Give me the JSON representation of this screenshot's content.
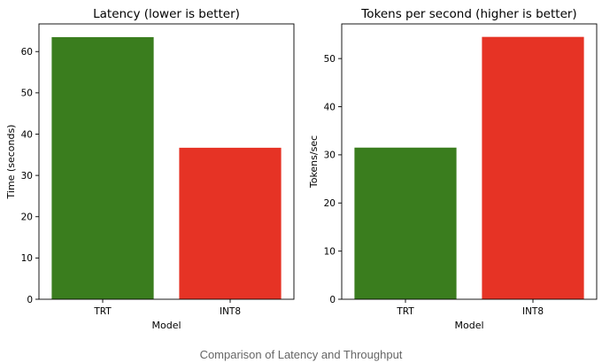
{
  "caption": "Comparison of Latency and Throughput",
  "colors": {
    "green": "#3a7d1e",
    "red": "#e63325"
  },
  "chart_data": [
    {
      "type": "bar",
      "title": "Latency (lower is better)",
      "xlabel": "Model",
      "ylabel": "Time (seconds)",
      "categories": [
        "TRT",
        "INT8"
      ],
      "values": [
        63.5,
        36.7
      ],
      "bar_colors": [
        "#3a7d1e",
        "#e63325"
      ],
      "ylim": [
        0,
        66.7
      ],
      "yticks": [
        0,
        10,
        20,
        30,
        40,
        50,
        60
      ],
      "grid": false
    },
    {
      "type": "bar",
      "title": "Tokens per second (higher is better)",
      "xlabel": "Model",
      "ylabel": "Tokens/sec",
      "categories": [
        "TRT",
        "INT8"
      ],
      "values": [
        31.5,
        54.5
      ],
      "bar_colors": [
        "#3a7d1e",
        "#e63325"
      ],
      "ylim": [
        0,
        57.2
      ],
      "yticks": [
        0,
        10,
        20,
        30,
        40,
        50
      ],
      "grid": false
    }
  ]
}
